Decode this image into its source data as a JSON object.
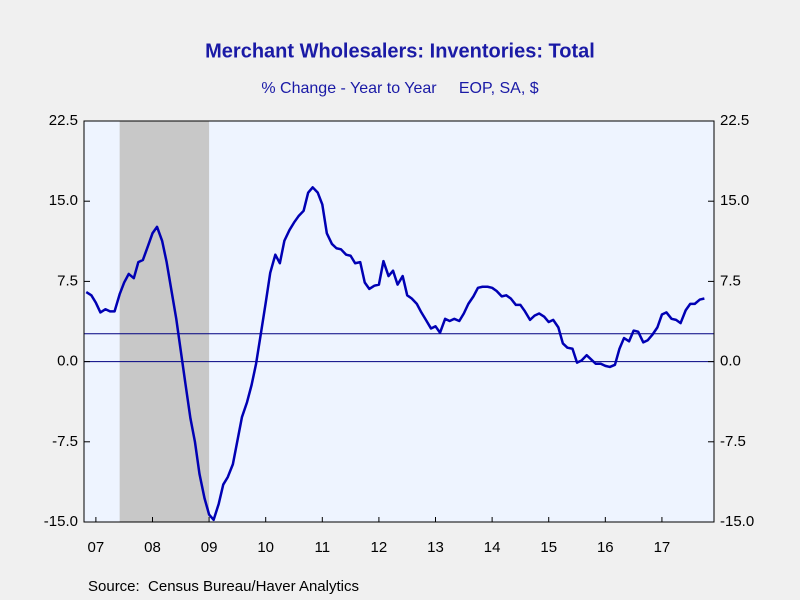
{
  "chart_data": {
    "type": "line",
    "title": "Merchant Wholesalers: Inventories: Total",
    "subtitle": "% Change - Year to Year     EOP, SA, $",
    "source": "Source:  Census Bureau/Haver Analytics",
    "color": "#0000b4",
    "x": [
      2007.33,
      2007.42,
      2007.5,
      2007.58,
      2007.67,
      2007.75,
      2007.83,
      2007.92,
      2008.0,
      2008.08,
      2008.17,
      2008.25,
      2008.33,
      2008.42,
      2008.5,
      2008.58,
      2008.67,
      2008.75,
      2008.83,
      2008.92,
      2009.0,
      2009.08,
      2009.17,
      2009.25,
      2009.33,
      2009.42,
      2009.5,
      2009.58,
      2009.67,
      2009.75,
      2009.83,
      2009.92,
      2010.0,
      2010.08,
      2010.17,
      2010.25,
      2010.33,
      2010.42,
      2010.5,
      2010.58,
      2010.67,
      2010.75,
      2010.83,
      2010.92,
      2011.0,
      2011.08,
      2011.17,
      2011.25,
      2011.33,
      2011.42,
      2011.5,
      2011.58,
      2011.67,
      2011.75,
      2011.83,
      2011.92,
      2012.0,
      2012.08,
      2012.17,
      2012.25,
      2012.33,
      2012.42,
      2012.5,
      2012.58,
      2012.67,
      2012.75,
      2012.83,
      2012.92,
      2013.0,
      2013.08,
      2013.17,
      2013.25,
      2013.33,
      2013.42,
      2013.5,
      2013.58,
      2013.67,
      2013.75,
      2013.83,
      2013.92,
      2014.0,
      2014.08,
      2014.17,
      2014.25,
      2014.33,
      2014.42,
      2014.5,
      2014.58,
      2014.67,
      2014.75,
      2014.83,
      2014.92,
      2015.0,
      2015.08,
      2015.17,
      2015.25,
      2015.33,
      2015.42,
      2015.5,
      2015.58,
      2015.67,
      2015.75,
      2015.83,
      2015.92,
      2016.0,
      2016.08,
      2016.17,
      2016.25,
      2016.33,
      2016.42,
      2016.5,
      2016.58,
      2016.67,
      2016.75,
      2016.83,
      2016.92,
      2017.0,
      2017.08,
      2017.17,
      2017.25,
      2017.33,
      2017.42,
      2017.5,
      2017.58,
      2017.67,
      2017.75,
      2017.83,
      2017.92,
      2018.0,
      2018.08,
      2018.17,
      2018.25
    ],
    "values": [
      6.5,
      6.2,
      5.5,
      4.6,
      4.9,
      4.7,
      4.7,
      6.3,
      7.4,
      8.2,
      7.8,
      9.3,
      9.5,
      10.8,
      12.0,
      12.6,
      11.3,
      9.3,
      6.8,
      4.0,
      1.0,
      -2.0,
      -5.3,
      -7.5,
      -10.5,
      -12.8,
      -14.3,
      -14.8,
      -13.3,
      -11.5,
      -10.8,
      -9.6,
      -7.4,
      -5.2,
      -3.8,
      -2.2,
      -0.2,
      2.8,
      5.5,
      8.3,
      10.0,
      9.2,
      11.3,
      12.3,
      13.0,
      13.6,
      14.1,
      15.8,
      16.3,
      15.8,
      14.7,
      12.0,
      11.0,
      10.6,
      10.5,
      10.0,
      9.9,
      9.2,
      9.3,
      7.4,
      6.8,
      7.1,
      7.2,
      9.4,
      8.0,
      8.5,
      7.2,
      8.0,
      6.2,
      5.9,
      5.4,
      4.6,
      3.9,
      3.1,
      3.3,
      2.7,
      4.0,
      3.8,
      4.0,
      3.8,
      4.5,
      5.4,
      6.1,
      6.9,
      7.0,
      7.0,
      6.9,
      6.6,
      6.1,
      6.2,
      5.9,
      5.3,
      5.3,
      4.7,
      3.9,
      4.3,
      4.5,
      4.2,
      3.7,
      3.9,
      3.2,
      1.7,
      1.3,
      1.2,
      -0.1,
      0.1,
      0.6,
      0.2,
      -0.2,
      -0.2,
      -0.4,
      -0.5,
      -0.3,
      1.2,
      2.2,
      1.9,
      2.9,
      2.8,
      1.8,
      2.0,
      2.5,
      3.2,
      4.4,
      4.6,
      4.0,
      3.9,
      3.6,
      4.8,
      5.4,
      5.4,
      5.8,
      5.9
    ],
    "xlim": [
      2007.29,
      2018.42
    ],
    "xticks": [
      {
        "value": 2007.5,
        "label": "07"
      },
      {
        "value": 2008.5,
        "label": "08"
      },
      {
        "value": 2009.5,
        "label": "09"
      },
      {
        "value": 2010.5,
        "label": "10"
      },
      {
        "value": 2011.5,
        "label": "11"
      },
      {
        "value": 2012.5,
        "label": "12"
      },
      {
        "value": 2013.5,
        "label": "13"
      },
      {
        "value": 2014.5,
        "label": "14"
      },
      {
        "value": 2015.5,
        "label": "15"
      },
      {
        "value": 2016.5,
        "label": "16"
      },
      {
        "value": 2017.5,
        "label": "17"
      }
    ],
    "ylim": [
      -15,
      22.5
    ],
    "yticks": [
      22.5,
      {
        "value": 15,
        "label": "15.0"
      },
      7.5,
      {
        "value": 0,
        "label": "0.0"
      },
      -7.5,
      {
        "value": -15,
        "label": "-15.0"
      }
    ],
    "y2lim": [
      -15,
      22.5
    ],
    "y2ticks": [
      22.5,
      {
        "value": 15,
        "label": "15.0"
      },
      7.5,
      {
        "value": 0,
        "label": "0.0"
      },
      -7.5,
      {
        "value": -15,
        "label": "-15.0"
      }
    ],
    "recession": [
      2007.92,
      2009.5
    ],
    "reference_line": 2.6,
    "zero_line": 0
  }
}
